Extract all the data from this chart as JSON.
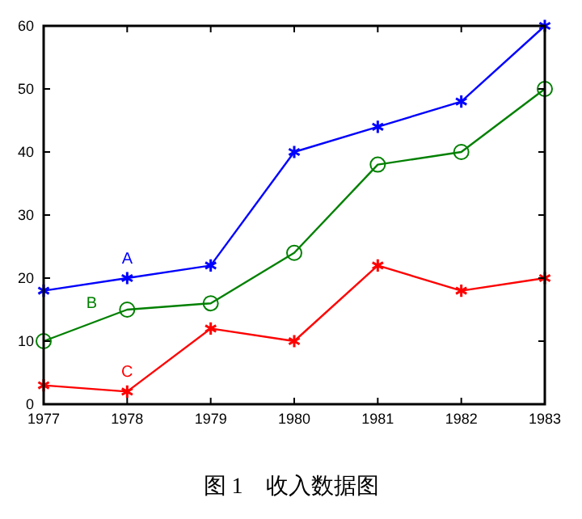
{
  "chart_data": {
    "type": "line",
    "title": "图 1　收入数据图",
    "x": [
      1977,
      1978,
      1979,
      1980,
      1981,
      1982,
      1983
    ],
    "xlim": [
      1977,
      1983
    ],
    "xticks": [
      1977,
      1978,
      1979,
      1980,
      1981,
      1982,
      1983
    ],
    "ylim": [
      0,
      60
    ],
    "yticks": [
      0,
      10,
      20,
      30,
      40,
      50,
      60
    ],
    "grid": false,
    "series": [
      {
        "name": "A",
        "color": "#0000ff",
        "marker": "cross",
        "values": [
          18,
          20,
          22,
          40,
          44,
          48,
          60
        ]
      },
      {
        "name": "B",
        "color": "#008000",
        "marker": "circle",
        "values": [
          10,
          15,
          16,
          24,
          38,
          40,
          50
        ]
      },
      {
        "name": "C",
        "color": "#ff0000",
        "marker": "cross",
        "values": [
          3,
          2,
          12,
          10,
          22,
          18,
          20
        ]
      }
    ]
  }
}
